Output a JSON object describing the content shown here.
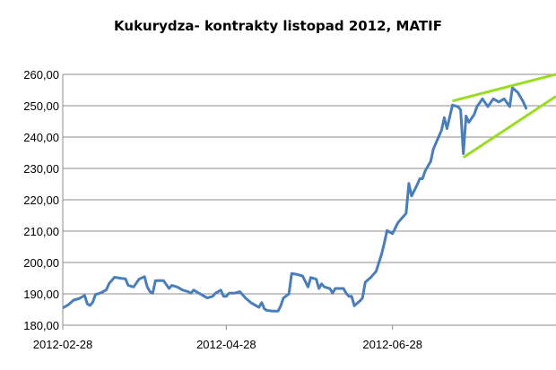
{
  "chart_data": {
    "type": "line",
    "title": "Kukurydza- kontrakty listopad 2012, MATIF",
    "xlabel": "",
    "ylabel": "",
    "ylim": [
      180,
      260
    ],
    "yticks": [
      180,
      190,
      200,
      210,
      220,
      230,
      240,
      250,
      260
    ],
    "ytick_labels": [
      "180,00",
      "190,00",
      "200,00",
      "210,00",
      "220,00",
      "230,00",
      "240,00",
      "250,00",
      "260,00"
    ],
    "xticks": [
      "2012-02-28",
      "2012-04-28",
      "2012-06-28"
    ],
    "xlim": [
      "2012-02-28",
      "2012-08-27"
    ],
    "grid": true,
    "legend": "none",
    "series": [
      {
        "color": "#4a7ebb",
        "points": [
          [
            "2012-02-28",
            185.5
          ],
          [
            "2012-03-01",
            186.5
          ],
          [
            "2012-03-03",
            188.0
          ],
          [
            "2012-03-05",
            188.5
          ],
          [
            "2012-03-07",
            189.5
          ],
          [
            "2012-03-08",
            186.8
          ],
          [
            "2012-03-09",
            186.3
          ],
          [
            "2012-03-10",
            187.3
          ],
          [
            "2012-03-11",
            189.8
          ],
          [
            "2012-03-13",
            190.3
          ],
          [
            "2012-03-15",
            191.3
          ],
          [
            "2012-03-16",
            193.3
          ],
          [
            "2012-03-18",
            195.3
          ],
          [
            "2012-03-20",
            195.0
          ],
          [
            "2012-03-22",
            194.8
          ],
          [
            "2012-03-23",
            192.7
          ],
          [
            "2012-03-25",
            192.2
          ],
          [
            "2012-03-27",
            194.7
          ],
          [
            "2012-03-29",
            195.5
          ],
          [
            "2012-03-30",
            192.2
          ],
          [
            "2012-03-31",
            190.7
          ],
          [
            "2012-04-01",
            190.2
          ],
          [
            "2012-04-02",
            194.2
          ],
          [
            "2012-04-05",
            194.2
          ],
          [
            "2012-04-07",
            191.7
          ],
          [
            "2012-04-08",
            192.7
          ],
          [
            "2012-04-10",
            192.2
          ],
          [
            "2012-04-12",
            191.2
          ],
          [
            "2012-04-14",
            190.7
          ],
          [
            "2012-04-15",
            190.2
          ],
          [
            "2012-04-16",
            191.2
          ],
          [
            "2012-04-18",
            190.2
          ],
          [
            "2012-04-20",
            189.2
          ],
          [
            "2012-04-21",
            188.7
          ],
          [
            "2012-04-23",
            189.2
          ],
          [
            "2012-04-24",
            190.2
          ],
          [
            "2012-04-26",
            191.2
          ],
          [
            "2012-04-27",
            189.2
          ],
          [
            "2012-04-28",
            189.2
          ],
          [
            "2012-04-29",
            190.2
          ],
          [
            "2012-05-01",
            190.2
          ],
          [
            "2012-05-03",
            190.7
          ],
          [
            "2012-05-05",
            188.7
          ],
          [
            "2012-05-07",
            187.2
          ],
          [
            "2012-05-09",
            186.2
          ],
          [
            "2012-05-10",
            185.7
          ],
          [
            "2012-05-11",
            187.2
          ],
          [
            "2012-05-12",
            185.2
          ],
          [
            "2012-05-13",
            184.7
          ],
          [
            "2012-05-15",
            184.5
          ],
          [
            "2012-05-17",
            184.5
          ],
          [
            "2012-05-18",
            186.2
          ],
          [
            "2012-05-19",
            188.7
          ],
          [
            "2012-05-21",
            190.0
          ],
          [
            "2012-05-22",
            196.5
          ],
          [
            "2012-05-24",
            196.2
          ],
          [
            "2012-05-26",
            195.7
          ],
          [
            "2012-05-28",
            192.2
          ],
          [
            "2012-05-29",
            195.2
          ],
          [
            "2012-05-31",
            194.7
          ],
          [
            "2012-06-01",
            191.7
          ],
          [
            "2012-06-02",
            193.2
          ],
          [
            "2012-06-03",
            192.2
          ],
          [
            "2012-06-05",
            191.7
          ],
          [
            "2012-06-06",
            190.2
          ],
          [
            "2012-06-07",
            191.7
          ],
          [
            "2012-06-08",
            191.7
          ],
          [
            "2012-06-10",
            191.7
          ],
          [
            "2012-06-11",
            190.2
          ],
          [
            "2012-06-12",
            189.2
          ],
          [
            "2012-06-13",
            189.2
          ],
          [
            "2012-06-14",
            186.2
          ],
          [
            "2012-06-16",
            187.7
          ],
          [
            "2012-06-17",
            188.7
          ],
          [
            "2012-06-18",
            193.7
          ],
          [
            "2012-06-20",
            195.2
          ],
          [
            "2012-06-22",
            197.2
          ],
          [
            "2012-06-24",
            202.7
          ],
          [
            "2012-06-25",
            206.2
          ],
          [
            "2012-06-26",
            210.2
          ],
          [
            "2012-06-28",
            209.2
          ],
          [
            "2012-06-30",
            212.7
          ],
          [
            "2012-07-01",
            213.7
          ],
          [
            "2012-07-03",
            215.7
          ],
          [
            "2012-07-04",
            225.2
          ],
          [
            "2012-07-05",
            221.2
          ],
          [
            "2012-07-07",
            224.7
          ],
          [
            "2012-07-08",
            226.7
          ],
          [
            "2012-07-09",
            226.7
          ],
          [
            "2012-07-10",
            229.2
          ],
          [
            "2012-07-12",
            232.2
          ],
          [
            "2012-07-13",
            236.2
          ],
          [
            "2012-07-15",
            240.2
          ],
          [
            "2012-07-16",
            242.2
          ],
          [
            "2012-07-17",
            246.2
          ],
          [
            "2012-07-18",
            242.7
          ],
          [
            "2012-07-20",
            250.2
          ],
          [
            "2012-07-22",
            249.7
          ],
          [
            "2012-07-23",
            248.7
          ],
          [
            "2012-07-24",
            234.7
          ],
          [
            "2012-07-25",
            246.7
          ],
          [
            "2012-07-26",
            244.7
          ],
          [
            "2012-07-28",
            247.2
          ],
          [
            "2012-07-29",
            249.7
          ],
          [
            "2012-07-31",
            252.2
          ],
          [
            "2012-08-02",
            249.7
          ],
          [
            "2012-08-04",
            252.2
          ],
          [
            "2012-08-06",
            251.2
          ],
          [
            "2012-08-08",
            252.2
          ],
          [
            "2012-08-10",
            249.7
          ],
          [
            "2012-08-11",
            255.7
          ],
          [
            "2012-08-13",
            254.2
          ],
          [
            "2012-08-14",
            252.7
          ],
          [
            "2012-08-15",
            251.2
          ],
          [
            "2012-08-16",
            249.2
          ]
        ]
      }
    ],
    "annotations": [
      {
        "type": "trendline",
        "color": "#99dd22",
        "from": [
          "2012-07-20",
          251.5
        ],
        "to": [
          "2012-08-27",
          260.0
        ]
      },
      {
        "type": "trendline",
        "color": "#99dd22",
        "from": [
          "2012-07-24",
          233.5
        ],
        "to": [
          "2012-08-27",
          253.0
        ]
      }
    ]
  }
}
